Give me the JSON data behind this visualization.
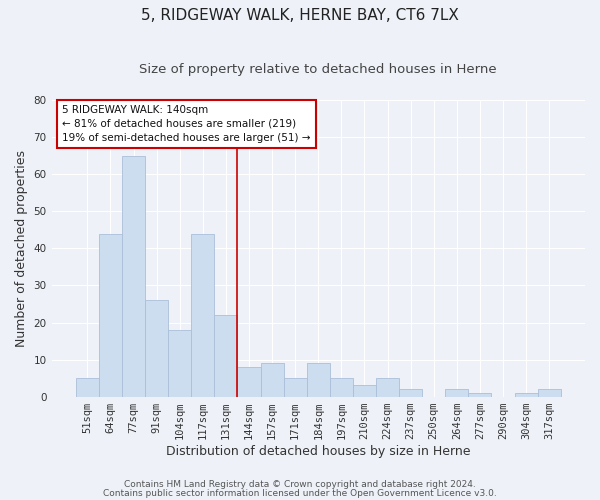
{
  "title": "5, RIDGEWAY WALK, HERNE BAY, CT6 7LX",
  "subtitle": "Size of property relative to detached houses in Herne",
  "xlabel": "Distribution of detached houses by size in Herne",
  "ylabel": "Number of detached properties",
  "bar_labels": [
    "51sqm",
    "64sqm",
    "77sqm",
    "91sqm",
    "104sqm",
    "117sqm",
    "131sqm",
    "144sqm",
    "157sqm",
    "171sqm",
    "184sqm",
    "197sqm",
    "210sqm",
    "224sqm",
    "237sqm",
    "250sqm",
    "264sqm",
    "277sqm",
    "290sqm",
    "304sqm",
    "317sqm"
  ],
  "bar_values": [
    5,
    44,
    65,
    26,
    18,
    44,
    22,
    8,
    9,
    5,
    9,
    5,
    3,
    5,
    2,
    0,
    2,
    1,
    0,
    1,
    2
  ],
  "bar_color": "#ccddf0",
  "bar_edge_color": "#aabfd8",
  "vline_index": 7,
  "vline_color": "#cc0000",
  "annotation_title": "5 RIDGEWAY WALK: 140sqm",
  "annotation_line1": "← 81% of detached houses are smaller (219)",
  "annotation_line2": "19% of semi-detached houses are larger (51) →",
  "annotation_box_facecolor": "#ffffff",
  "annotation_box_edgecolor": "#cc0000",
  "ylim": [
    0,
    80
  ],
  "yticks": [
    0,
    10,
    20,
    30,
    40,
    50,
    60,
    70,
    80
  ],
  "footer1": "Contains HM Land Registry data © Crown copyright and database right 2024.",
  "footer2": "Contains public sector information licensed under the Open Government Licence v3.0.",
  "background_color": "#eef2f8",
  "grid_color": "#ffffff",
  "title_fontsize": 11,
  "subtitle_fontsize": 9.5,
  "axis_label_fontsize": 9,
  "tick_fontsize": 7.5,
  "annotation_fontsize": 7.5,
  "footer_fontsize": 6.5
}
